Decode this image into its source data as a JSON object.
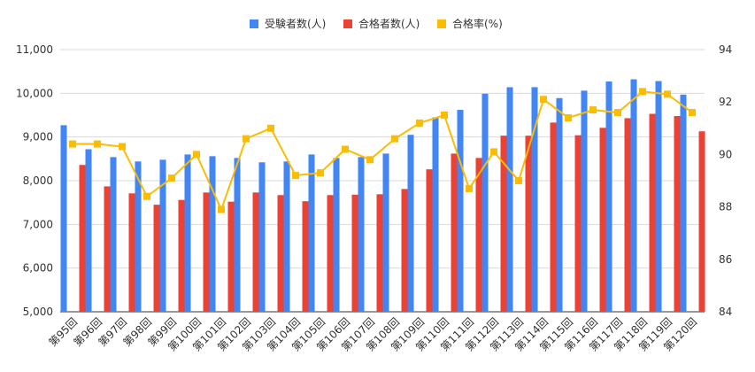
{
  "chart_data": {
    "type": "bar",
    "categories": [
      "第95回",
      "第96回",
      "第97回",
      "第98回",
      "第99回",
      "第100回",
      "第101回",
      "第102回",
      "第103回",
      "第104回",
      "第105回",
      "第106回",
      "第107回",
      "第108回",
      "第109回",
      "第110回",
      "第111回",
      "第112回",
      "第113回",
      "第114回",
      "第115回",
      "第116回",
      "第117回",
      "第118回",
      "第119回",
      "第120回"
    ],
    "series": [
      {
        "name": "受験者数(人)",
        "type": "bar",
        "axis": "left",
        "color": "#4285f4",
        "values": [
          9270,
          8720,
          8540,
          8440,
          8480,
          8600,
          8560,
          8520,
          8420,
          8440,
          8600,
          8520,
          8540,
          8620,
          9050,
          9450,
          9620,
          9990,
          10140,
          10140,
          9890,
          10060,
          10270,
          10320,
          10280,
          9970
        ]
      },
      {
        "name": "合格者数(人)",
        "type": "bar",
        "axis": "left",
        "color": "#ea4335",
        "values": [
          8360,
          7870,
          7710,
          7450,
          7560,
          7730,
          7520,
          7730,
          7670,
          7530,
          7670,
          7680,
          7690,
          7810,
          8260,
          8620,
          8520,
          9030,
          9030,
          9330,
          9040,
          9210,
          9430,
          9530,
          9480,
          9130
        ]
      },
      {
        "name": "合格率(%)",
        "type": "line",
        "axis": "right",
        "color": "#fbbc04",
        "values": [
          90.4,
          90.4,
          90.3,
          88.4,
          89.1,
          90.0,
          87.9,
          90.6,
          91.0,
          89.2,
          89.3,
          90.2,
          89.8,
          90.6,
          91.2,
          91.5,
          88.7,
          90.1,
          89.0,
          92.1,
          91.4,
          91.7,
          91.6,
          92.4,
          92.3,
          91.6
        ]
      }
    ],
    "y_left": {
      "min": 5000,
      "max": 11000,
      "ticks": [
        "5,000",
        "6,000",
        "7,000",
        "8,000",
        "9,000",
        "10,000",
        "11,000"
      ]
    },
    "y_right": {
      "min": 84,
      "max": 94,
      "ticks": [
        "84",
        "86",
        "88",
        "90",
        "92",
        "94"
      ]
    },
    "legend": {
      "placement": "top-center"
    },
    "grid": true,
    "title": "",
    "xlabel": "",
    "ylabel": ""
  }
}
